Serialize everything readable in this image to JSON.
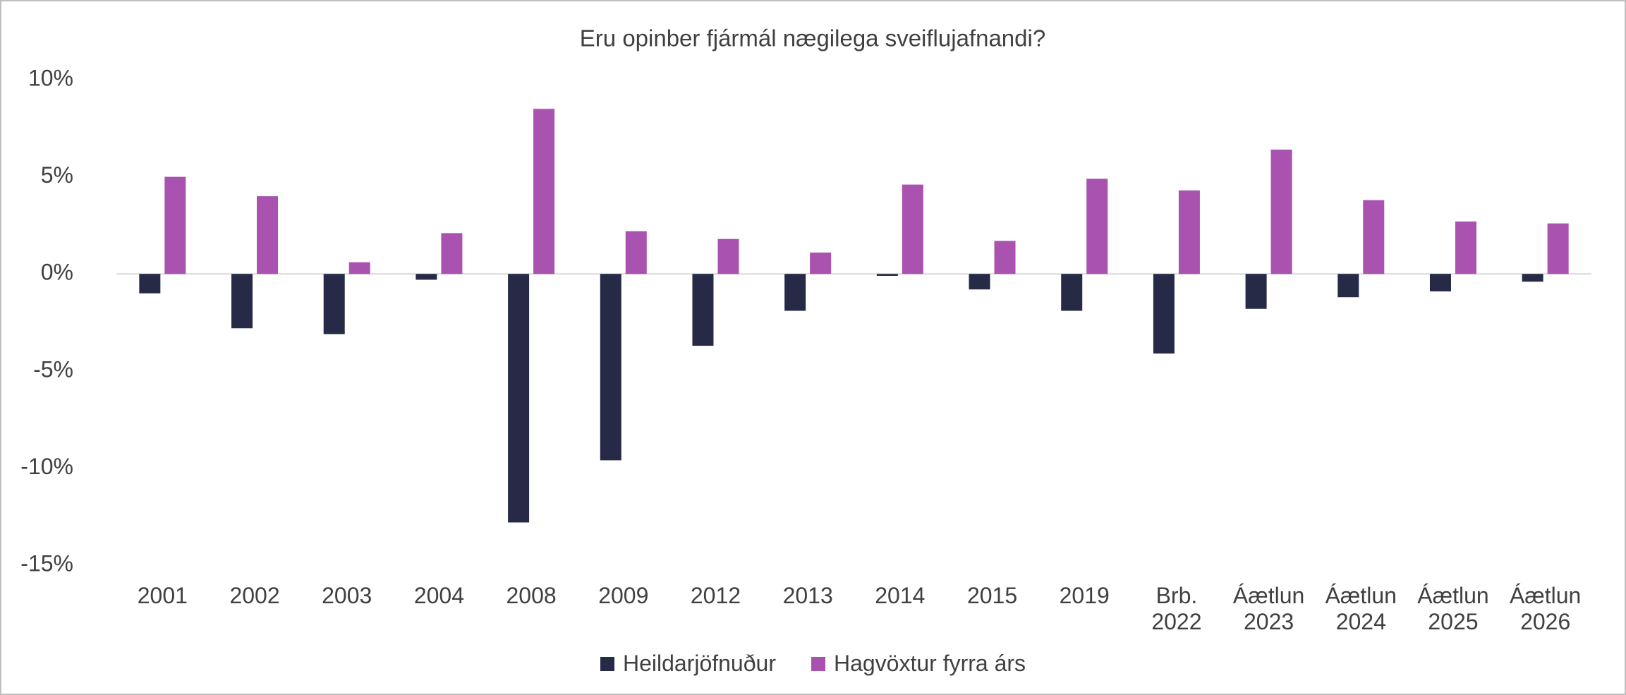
{
  "chart_data": {
    "type": "bar",
    "title": "Eru opinber fjármál nægilega sveiflujafnandi?",
    "categories": [
      "2001",
      "2002",
      "2003",
      "2004",
      "2008",
      "2009",
      "2012",
      "2013",
      "2014",
      "2015",
      "2019",
      "Brb. 2022",
      "Áætlun 2023",
      "Áætlun 2024",
      "Áætlun 2025",
      "Áætlun 2026"
    ],
    "series": [
      {
        "name": "Heildarjöfnuður",
        "color": "#262a47",
        "values": [
          -1.0,
          -2.8,
          -3.1,
          -0.3,
          -12.8,
          -9.6,
          -3.7,
          -1.9,
          -0.1,
          -0.8,
          -1.9,
          -4.1,
          -1.8,
          -1.2,
          -0.9,
          -0.4
        ]
      },
      {
        "name": "Hagvöxtur fyrra árs",
        "color": "#a952b0",
        "values": [
          5.0,
          4.0,
          0.6,
          2.1,
          8.5,
          2.2,
          1.8,
          1.1,
          4.6,
          1.7,
          4.9,
          4.3,
          6.4,
          3.8,
          2.7,
          2.6
        ]
      }
    ],
    "ylim": [
      -15,
      10
    ],
    "yticks": [
      {
        "value": 10,
        "label": "10%"
      },
      {
        "value": 5,
        "label": "5%"
      },
      {
        "value": 0,
        "label": "0%"
      },
      {
        "value": -5,
        "label": "-5%"
      },
      {
        "value": -10,
        "label": "-10%"
      },
      {
        "value": -15,
        "label": "-15%"
      }
    ],
    "grid": false,
    "legend": "bottom"
  }
}
